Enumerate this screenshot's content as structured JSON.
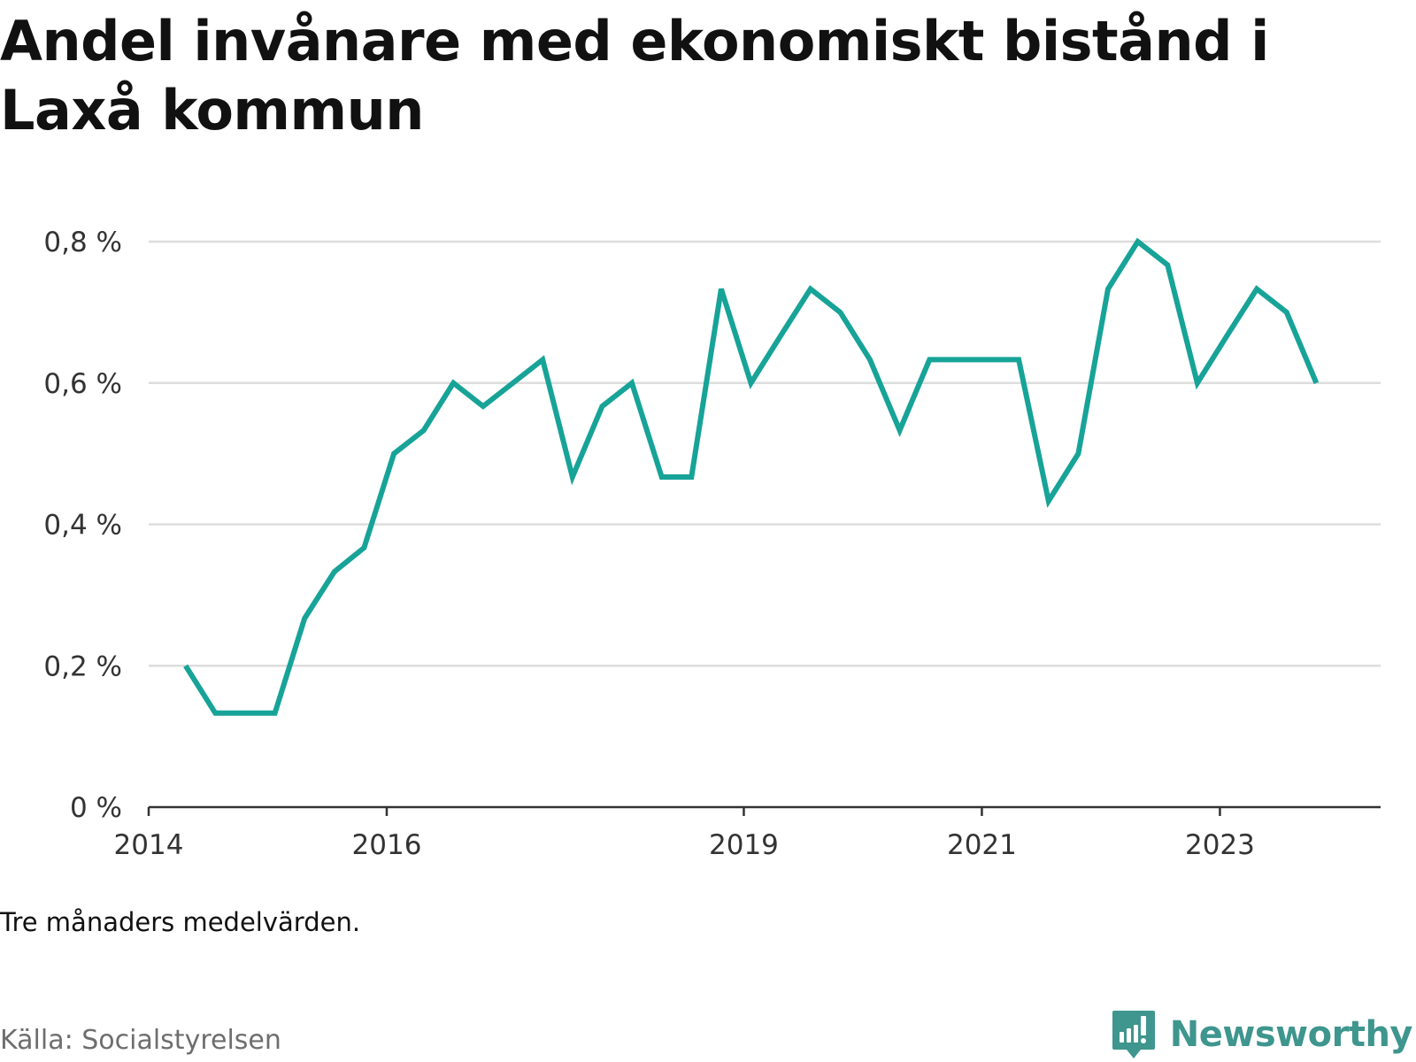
{
  "title": "Andel invånare med ekonomiskt bistånd i Laxå kommun",
  "note": "Tre månaders medelvärden.",
  "source": "Källa: Socialstyrelsen",
  "brand": {
    "name": "Newsworthy",
    "icon": "newsworthy-logo-icon",
    "color": "#3e968e"
  },
  "colors": {
    "line": "#17a398",
    "grid": "#dddddd",
    "axis": "#333333"
  },
  "chart_data": {
    "type": "line",
    "ylim": [
      0,
      0.8
    ],
    "yticks": [
      0,
      0.2,
      0.4,
      0.6,
      0.8
    ],
    "ytick_labels": [
      "0 %",
      "0,2 %",
      "0,4 %",
      "0,6 %",
      "0,8 %"
    ],
    "xlim": [
      2014,
      2024.35
    ],
    "xticks": [
      2014,
      2016,
      2019,
      2021,
      2023
    ],
    "xtick_labels": [
      "2014",
      "2016",
      "2019",
      "2021",
      "2023"
    ],
    "grid": true,
    "series": [
      {
        "x": [
          2014.31,
          2014.56,
          2014.81,
          2015.06,
          2015.31,
          2015.56,
          2015.81,
          2016.06,
          2016.31,
          2016.56,
          2016.81,
          2017.06,
          2017.31,
          2017.56,
          2017.81,
          2018.06,
          2018.31,
          2018.56,
          2018.81,
          2019.06,
          2019.31,
          2019.56,
          2019.81,
          2020.06,
          2020.31,
          2020.56,
          2020.81,
          2021.06,
          2021.31,
          2021.56,
          2021.81,
          2022.06,
          2022.31,
          2022.56,
          2022.81,
          2023.06,
          2023.31,
          2023.56,
          2023.81
        ],
        "values": [
          0.2,
          0.133,
          0.133,
          0.133,
          0.267,
          0.333,
          0.367,
          0.5,
          0.533,
          0.6,
          0.567,
          0.6,
          0.633,
          0.467,
          0.567,
          0.6,
          0.467,
          0.467,
          0.733,
          0.6,
          0.667,
          0.733,
          0.7,
          0.633,
          0.533,
          0.633,
          0.633,
          0.633,
          0.633,
          0.433,
          0.5,
          0.733,
          0.8,
          0.767,
          0.6,
          0.667,
          0.733,
          0.7,
          0.6
        ]
      }
    ]
  }
}
